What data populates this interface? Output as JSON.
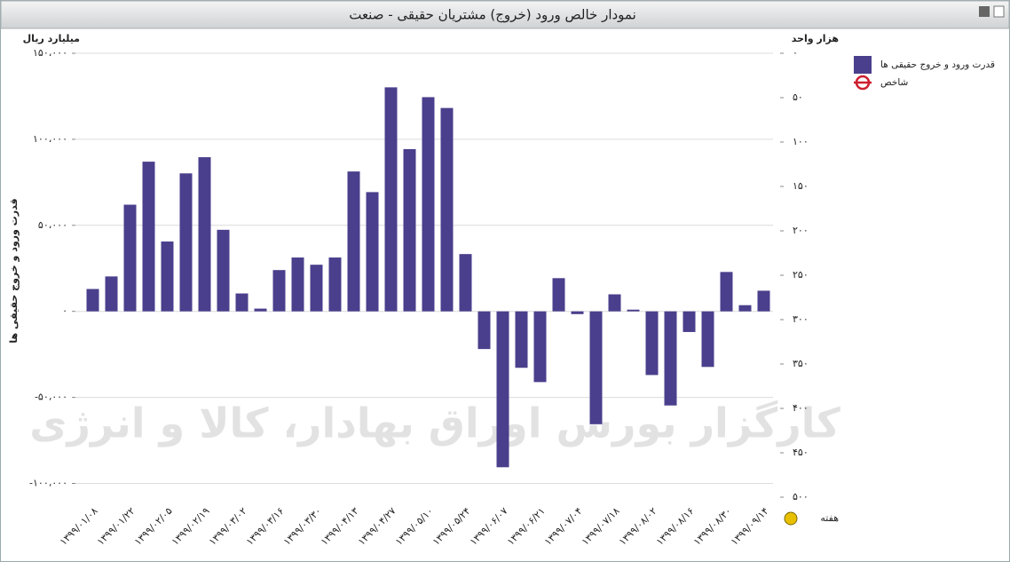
{
  "chart_data": {
    "type": "bar",
    "title": "نمودار خالص ورود (خروج) مشتریان حقیقی - صنعت",
    "y_unit": "میلیارد ریال",
    "y2_unit": "هزار واحد",
    "y_label": "قدرت ورود و خروج حقیقی ها",
    "x_label": "هفته",
    "watermark": "کارگزار بورس اوراق بهادار، کالا و انرژی",
    "categories": [
      "۱۳۹۹/۰۱/۰۸",
      null,
      "۱۳۹۹/۰۱/۲۲",
      null,
      "۱۳۹۹/۰۲/۰۵",
      null,
      "۱۳۹۹/۰۲/۱۹",
      null,
      "۱۳۹۹/۰۳/۰۲",
      null,
      "۱۳۹۹/۰۳/۱۶",
      null,
      "۱۳۹۹/۰۳/۳۰",
      null,
      "۱۳۹۹/۰۴/۱۳",
      null,
      "۱۳۹۹/۰۴/۲۷",
      null,
      "۱۳۹۹/۰۵/۱۰",
      null,
      "۱۳۹۹/۰۵/۲۴",
      null,
      "۱۳۹۹/۰۶/۰۷",
      null,
      "۱۳۹۹/۰۶/۲۱",
      null,
      "۱۳۹۹/۰۷/۰۴",
      null,
      "۱۳۹۹/۰۷/۱۸",
      null,
      "۱۳۹۹/۰۸/۰۲",
      null,
      "۱۳۹۹/۰۸/۱۶",
      null,
      "۱۳۹۹/۰۸/۳۰",
      null,
      "۱۳۹۹/۰۹/۱۴"
    ],
    "series": [
      {
        "name": "قدرت ورود و خروج حقیقی ها",
        "color": "#4a3f8c",
        "values": [
          13000,
          20300,
          62000,
          87000,
          40600,
          80200,
          89600,
          47400,
          10400,
          1600,
          24000,
          31300,
          27100,
          31300,
          81300,
          69300,
          130200,
          94300,
          124500,
          118200,
          33300,
          -21900,
          -90600,
          -32800,
          -41100,
          19300,
          -1600,
          -65600,
          9900,
          1000,
          -37000,
          -54700,
          -12000,
          -32300,
          22900,
          3600,
          12000
        ]
      },
      {
        "name": "شاخص",
        "color": "#cc1f2f",
        "axis": "y2"
      }
    ],
    "ylim": [
      -108000,
      150000
    ],
    "yticks": [
      {
        "value": 150000,
        "label": "۱۵۰،۰۰۰"
      },
      {
        "value": 100000,
        "label": "۱۰۰،۰۰۰"
      },
      {
        "value": 50000,
        "label": "۵۰،۰۰۰"
      },
      {
        "value": 0,
        "label": "۰"
      },
      {
        "value": -50000,
        "label": "-۵۰،۰۰۰"
      },
      {
        "value": -100000,
        "label": "-۱۰۰،۰۰۰"
      }
    ],
    "y2lim": [
      500,
      0
    ],
    "y2ticks": [
      {
        "value": 0,
        "label": "۰"
      },
      {
        "value": 50,
        "label": "۵۰"
      },
      {
        "value": 100,
        "label": "۱۰۰"
      },
      {
        "value": 150,
        "label": "۱۵۰"
      },
      {
        "value": 200,
        "label": "۲۰۰"
      },
      {
        "value": 250,
        "label": "۲۵۰"
      },
      {
        "value": 300,
        "label": "۳۰۰"
      },
      {
        "value": 350,
        "label": "۳۵۰"
      },
      {
        "value": 400,
        "label": "۴۰۰"
      },
      {
        "value": 450,
        "label": "۴۵۰"
      },
      {
        "value": 500,
        "label": "۵۰۰"
      }
    ],
    "grid": true
  }
}
